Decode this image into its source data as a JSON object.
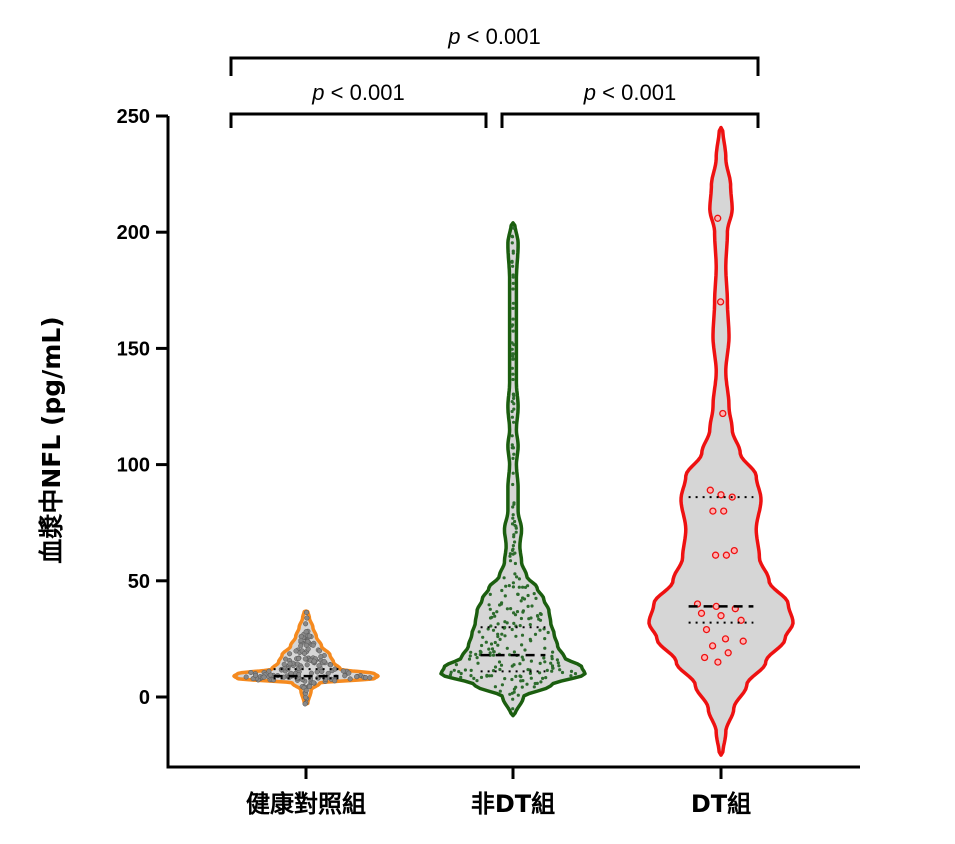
{
  "chart_data": {
    "type": "violin",
    "ylabel": "血漿中NFL (pg/mL)",
    "ylim": [
      -30,
      250
    ],
    "yticks": [
      0,
      50,
      100,
      150,
      200,
      250
    ],
    "categories": [
      "健康對照組",
      "非DT組",
      "DT組"
    ],
    "groups": [
      {
        "name": "健康對照組",
        "color": "#f58a1f",
        "point_color": "#888888",
        "range": [
          -3,
          37
        ],
        "median": 9,
        "q1": 8,
        "q3": 12,
        "density_profile": [
          [
            -3,
            1
          ],
          [
            3,
            3
          ],
          [
            6,
            8
          ],
          [
            8,
            40
          ],
          [
            9,
            42
          ],
          [
            10,
            40
          ],
          [
            12,
            20
          ],
          [
            15,
            16
          ],
          [
            18,
            14
          ],
          [
            22,
            9
          ],
          [
            26,
            6
          ],
          [
            30,
            4
          ],
          [
            34,
            2
          ],
          [
            37,
            1
          ]
        ]
      },
      {
        "name": "非DT組",
        "color": "#1b5e0f",
        "point_color": "#2d6b2d",
        "range": [
          -8,
          204
        ],
        "median": 18,
        "q1": 11,
        "q3": 30,
        "density_profile": [
          [
            -8,
            1
          ],
          [
            0,
            6
          ],
          [
            5,
            22
          ],
          [
            10,
            42
          ],
          [
            13,
            40
          ],
          [
            17,
            30
          ],
          [
            22,
            26
          ],
          [
            27,
            24
          ],
          [
            32,
            22
          ],
          [
            37,
            21
          ],
          [
            42,
            18
          ],
          [
            47,
            14
          ],
          [
            52,
            8
          ],
          [
            58,
            5
          ],
          [
            65,
            4
          ],
          [
            72,
            5
          ],
          [
            80,
            3
          ],
          [
            90,
            3
          ],
          [
            100,
            2
          ],
          [
            108,
            3
          ],
          [
            115,
            2
          ],
          [
            125,
            3
          ],
          [
            135,
            2
          ],
          [
            150,
            2
          ],
          [
            165,
            2
          ],
          [
            180,
            2
          ],
          [
            195,
            3
          ],
          [
            204,
            1
          ]
        ]
      },
      {
        "name": "DT組",
        "color": "#ee1111",
        "point_color": "#ee1111",
        "range": [
          -25,
          245
        ],
        "median": 39,
        "q1": 32,
        "q3": 86,
        "density_profile": [
          [
            -25,
            1
          ],
          [
            -15,
            3
          ],
          [
            -5,
            8
          ],
          [
            5,
            16
          ],
          [
            15,
            28
          ],
          [
            25,
            40
          ],
          [
            32,
            45
          ],
          [
            40,
            42
          ],
          [
            50,
            30
          ],
          [
            60,
            24
          ],
          [
            72,
            22
          ],
          [
            85,
            25
          ],
          [
            95,
            22
          ],
          [
            105,
            12
          ],
          [
            115,
            7
          ],
          [
            125,
            5
          ],
          [
            140,
            3
          ],
          [
            155,
            5
          ],
          [
            170,
            4
          ],
          [
            185,
            3
          ],
          [
            200,
            4
          ],
          [
            210,
            7
          ],
          [
            220,
            6
          ],
          [
            232,
            3
          ],
          [
            245,
            1
          ]
        ]
      }
    ],
    "dt_points": [
      206,
      170,
      122,
      89,
      87,
      86,
      80,
      80,
      63,
      61,
      61,
      40,
      39,
      38,
      36,
      35,
      33,
      29,
      25,
      24,
      22,
      19,
      17,
      15
    ],
    "comparisons": [
      {
        "from": 0,
        "to": 2,
        "label": "< 0.001",
        "p": "p"
      },
      {
        "from": 0,
        "to": 1,
        "label": "< 0.001",
        "p": "p"
      },
      {
        "from": 1,
        "to": 2,
        "label": "< 0.001",
        "p": "p"
      }
    ]
  }
}
